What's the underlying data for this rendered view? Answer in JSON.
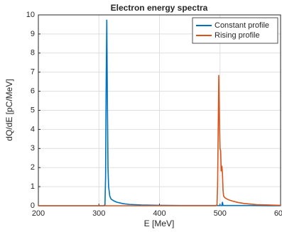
{
  "chart_data": {
    "type": "line",
    "title": "Electron energy spectra",
    "x_label": "E [MeV]",
    "y_label": "dQ/dE [pC/MeV]",
    "xlim": [
      200,
      600
    ],
    "xticks": [
      200,
      300,
      400,
      500,
      600
    ],
    "ylim": [
      0,
      10
    ],
    "yticks": [
      0,
      1,
      2,
      3,
      4,
      5,
      6,
      7,
      8,
      9,
      10
    ],
    "grid": true,
    "legend": "upper right",
    "series": [
      {
        "name": "Constant profile",
        "color": "#0072bd",
        "x": [
          200,
          308,
          310,
          311,
          312,
          313,
          314,
          315,
          316,
          318,
          320,
          325,
          330,
          340,
          350,
          370,
          400,
          450,
          500,
          503,
          504,
          505,
          507,
          550,
          600
        ],
        "values": [
          0,
          0,
          0.05,
          1.5,
          6.5,
          9.75,
          5.5,
          2.0,
          1.0,
          0.5,
          0.35,
          0.25,
          0.18,
          0.11,
          0.07,
          0.04,
          0.02,
          0.01,
          0.01,
          0.01,
          0.2,
          0.01,
          0.01,
          0.01,
          0
        ]
      },
      {
        "name": "Rising profile",
        "color": "#d95319",
        "x": [
          200,
          493,
          495,
          496,
          497,
          498,
          499,
          500,
          501,
          502,
          503,
          504,
          505,
          506,
          508,
          510,
          515,
          520,
          530,
          540,
          560,
          580,
          600
        ],
        "values": [
          0,
          0,
          0.05,
          1.0,
          4.0,
          6.85,
          4.5,
          3.0,
          2.9,
          1.8,
          2.1,
          1.7,
          0.8,
          0.5,
          0.42,
          0.38,
          0.3,
          0.25,
          0.17,
          0.12,
          0.06,
          0.04,
          0.02
        ]
      }
    ]
  }
}
